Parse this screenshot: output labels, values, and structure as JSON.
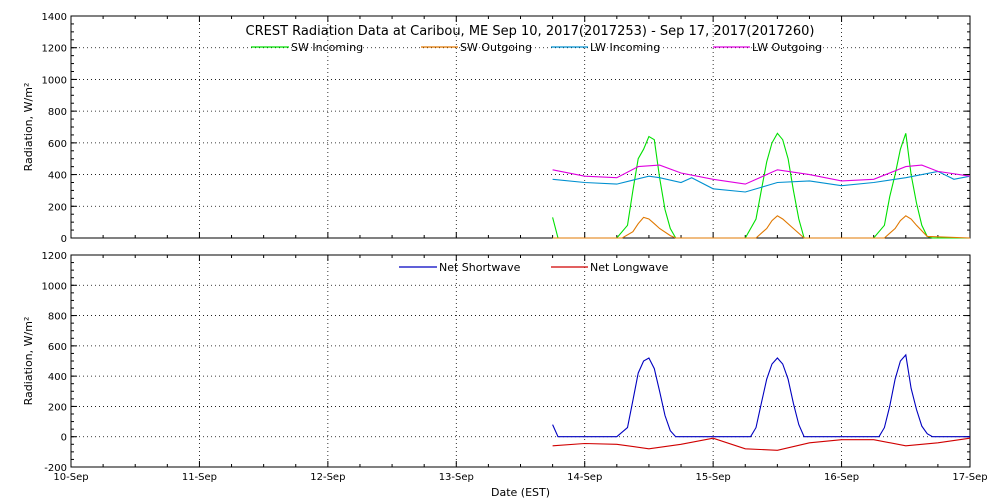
{
  "colors": {
    "sw_incoming": "#00e000",
    "sw_outgoing": "#e07800",
    "lw_incoming": "#0090d0",
    "lw_outgoing": "#e000e0",
    "net_shortwave": "#0000c0",
    "net_longwave": "#d00000"
  },
  "chart_data": [
    {
      "type": "line",
      "title": "CREST Radiation Data at Caribou, ME   Sep 10, 2017(2017253) - Sep 17, 2017(2017260)",
      "xlabel": "",
      "ylabel": "Radiation, W/m^2",
      "xlim": [
        "2017-09-10 00:00",
        "2017-09-17 00:00"
      ],
      "ylim": [
        0,
        1400
      ],
      "yticks": [
        "0",
        "200",
        "400",
        "600",
        "800",
        "1000",
        "1200",
        "1400"
      ],
      "grid": true,
      "legend_position": "top-center",
      "series": [
        {
          "name": "SW Incoming",
          "x": [
            "2017-09-13 18:00",
            "2017-09-13 19:00",
            "2017-09-14 06:00",
            "2017-09-14 08:00",
            "2017-09-14 09:00",
            "2017-09-14 10:00",
            "2017-09-14 11:00",
            "2017-09-14 12:00",
            "2017-09-14 13:00",
            "2017-09-14 14:00",
            "2017-09-14 15:00",
            "2017-09-14 16:00",
            "2017-09-14 17:00",
            "2017-09-14 18:00",
            "2017-09-15 06:00",
            "2017-09-15 08:00",
            "2017-09-15 09:00",
            "2017-09-15 10:00",
            "2017-09-15 11:00",
            "2017-09-15 12:00",
            "2017-09-15 13:00",
            "2017-09-15 14:00",
            "2017-09-15 15:00",
            "2017-09-15 16:00",
            "2017-09-15 17:00",
            "2017-09-15 18:00",
            "2017-09-16 06:00",
            "2017-09-16 08:00",
            "2017-09-16 09:00",
            "2017-09-16 10:00",
            "2017-09-16 11:00",
            "2017-09-16 12:00",
            "2017-09-16 13:00",
            "2017-09-16 14:00",
            "2017-09-16 15:00",
            "2017-09-16 16:00",
            "2017-09-16 17:00",
            "2017-09-16 18:00",
            "2017-09-17 00:00"
          ],
          "y": [
            130,
            0,
            0,
            80,
            300,
            500,
            560,
            640,
            620,
            380,
            180,
            60,
            0,
            0,
            0,
            120,
            300,
            480,
            600,
            660,
            620,
            500,
            300,
            120,
            0,
            0,
            0,
            80,
            260,
            400,
            560,
            660,
            400,
            220,
            80,
            10,
            0,
            0,
            0
          ]
        },
        {
          "name": "SW Outgoing",
          "x": [
            "2017-09-13 18:00",
            "2017-09-14 07:00",
            "2017-09-14 09:00",
            "2017-09-14 10:00",
            "2017-09-14 11:00",
            "2017-09-14 12:00",
            "2017-09-14 13:00",
            "2017-09-14 14:00",
            "2017-09-14 16:00",
            "2017-09-14 17:00",
            "2017-09-15 08:00",
            "2017-09-15 10:00",
            "2017-09-15 11:00",
            "2017-09-15 12:00",
            "2017-09-15 13:00",
            "2017-09-15 15:00",
            "2017-09-15 17:00",
            "2017-09-16 08:00",
            "2017-09-16 10:00",
            "2017-09-16 11:00",
            "2017-09-16 12:00",
            "2017-09-16 13:00",
            "2017-09-16 14:00",
            "2017-09-16 16:00",
            "2017-09-17 00:00"
          ],
          "y": [
            0,
            0,
            40,
            90,
            130,
            120,
            90,
            60,
            15,
            0,
            0,
            60,
            110,
            140,
            120,
            60,
            0,
            0,
            60,
            110,
            140,
            120,
            80,
            10,
            0
          ]
        },
        {
          "name": "LW Incoming",
          "x": [
            "2017-09-13 18:00",
            "2017-09-14 00:00",
            "2017-09-14 06:00",
            "2017-09-14 12:00",
            "2017-09-14 14:00",
            "2017-09-14 18:00",
            "2017-09-14 20:00",
            "2017-09-15 00:00",
            "2017-09-15 06:00",
            "2017-09-15 12:00",
            "2017-09-15 18:00",
            "2017-09-16 00:00",
            "2017-09-16 06:00",
            "2017-09-16 12:00",
            "2017-09-16 18:00",
            "2017-09-16 21:00",
            "2017-09-17 00:00"
          ],
          "y": [
            370,
            350,
            340,
            390,
            380,
            350,
            380,
            310,
            290,
            350,
            360,
            330,
            350,
            380,
            420,
            370,
            390
          ]
        },
        {
          "name": "LW Outgoing",
          "x": [
            "2017-09-13 18:00",
            "2017-09-14 00:00",
            "2017-09-14 06:00",
            "2017-09-14 10:00",
            "2017-09-14 14:00",
            "2017-09-14 18:00",
            "2017-09-15 00:00",
            "2017-09-15 06:00",
            "2017-09-15 12:00",
            "2017-09-15 18:00",
            "2017-09-16 00:00",
            "2017-09-16 06:00",
            "2017-09-16 12:00",
            "2017-09-16 15:00",
            "2017-09-16 18:00",
            "2017-09-17 00:00"
          ],
          "y": [
            430,
            390,
            380,
            450,
            460,
            410,
            370,
            340,
            430,
            400,
            360,
            370,
            450,
            460,
            420,
            390
          ]
        }
      ]
    },
    {
      "type": "line",
      "title": "",
      "xlabel": "Date (EST)",
      "ylabel": "Radiation, W/m^2",
      "xlim": [
        "2017-09-10 00:00",
        "2017-09-17 00:00"
      ],
      "ylim": [
        -200,
        1200
      ],
      "yticks": [
        "-200",
        "0",
        "200",
        "400",
        "600",
        "800",
        "1000",
        "1200"
      ],
      "xticks": [
        "10-Sep",
        "11-Sep",
        "12-Sep",
        "13-Sep",
        "14-Sep",
        "15-Sep",
        "16-Sep",
        "17-Sep"
      ],
      "grid": true,
      "legend_position": "top-center",
      "series": [
        {
          "name": "Net Shortwave",
          "x": [
            "2017-09-13 18:00",
            "2017-09-13 19:00",
            "2017-09-14 06:00",
            "2017-09-14 08:00",
            "2017-09-14 09:00",
            "2017-09-14 10:00",
            "2017-09-14 11:00",
            "2017-09-14 12:00",
            "2017-09-14 13:00",
            "2017-09-14 14:00",
            "2017-09-14 15:00",
            "2017-09-14 16:00",
            "2017-09-14 17:00",
            "2017-09-15 07:00",
            "2017-09-15 08:00",
            "2017-09-15 09:00",
            "2017-09-15 10:00",
            "2017-09-15 11:00",
            "2017-09-15 12:00",
            "2017-09-15 13:00",
            "2017-09-15 14:00",
            "2017-09-15 15:00",
            "2017-09-15 16:00",
            "2017-09-15 17:00",
            "2017-09-16 07:00",
            "2017-09-16 08:00",
            "2017-09-16 09:00",
            "2017-09-16 10:00",
            "2017-09-16 11:00",
            "2017-09-16 12:00",
            "2017-09-16 13:00",
            "2017-09-16 14:00",
            "2017-09-16 15:00",
            "2017-09-16 16:00",
            "2017-09-16 17:00",
            "2017-09-17 00:00"
          ],
          "y": [
            80,
            0,
            0,
            60,
            240,
            420,
            500,
            520,
            450,
            300,
            140,
            40,
            0,
            0,
            60,
            220,
            380,
            480,
            520,
            480,
            380,
            220,
            80,
            0,
            0,
            60,
            200,
            380,
            500,
            540,
            320,
            180,
            70,
            20,
            0,
            0
          ]
        },
        {
          "name": "Net Longwave",
          "x": [
            "2017-09-13 18:00",
            "2017-09-14 00:00",
            "2017-09-14 06:00",
            "2017-09-14 12:00",
            "2017-09-14 18:00",
            "2017-09-15 00:00",
            "2017-09-15 06:00",
            "2017-09-15 12:00",
            "2017-09-15 18:00",
            "2017-09-16 00:00",
            "2017-09-16 06:00",
            "2017-09-16 12:00",
            "2017-09-16 18:00",
            "2017-09-17 00:00"
          ],
          "y": [
            -60,
            -45,
            -50,
            -80,
            -50,
            -10,
            -80,
            -90,
            -40,
            -20,
            -20,
            -60,
            -40,
            -10
          ]
        }
      ]
    }
  ]
}
